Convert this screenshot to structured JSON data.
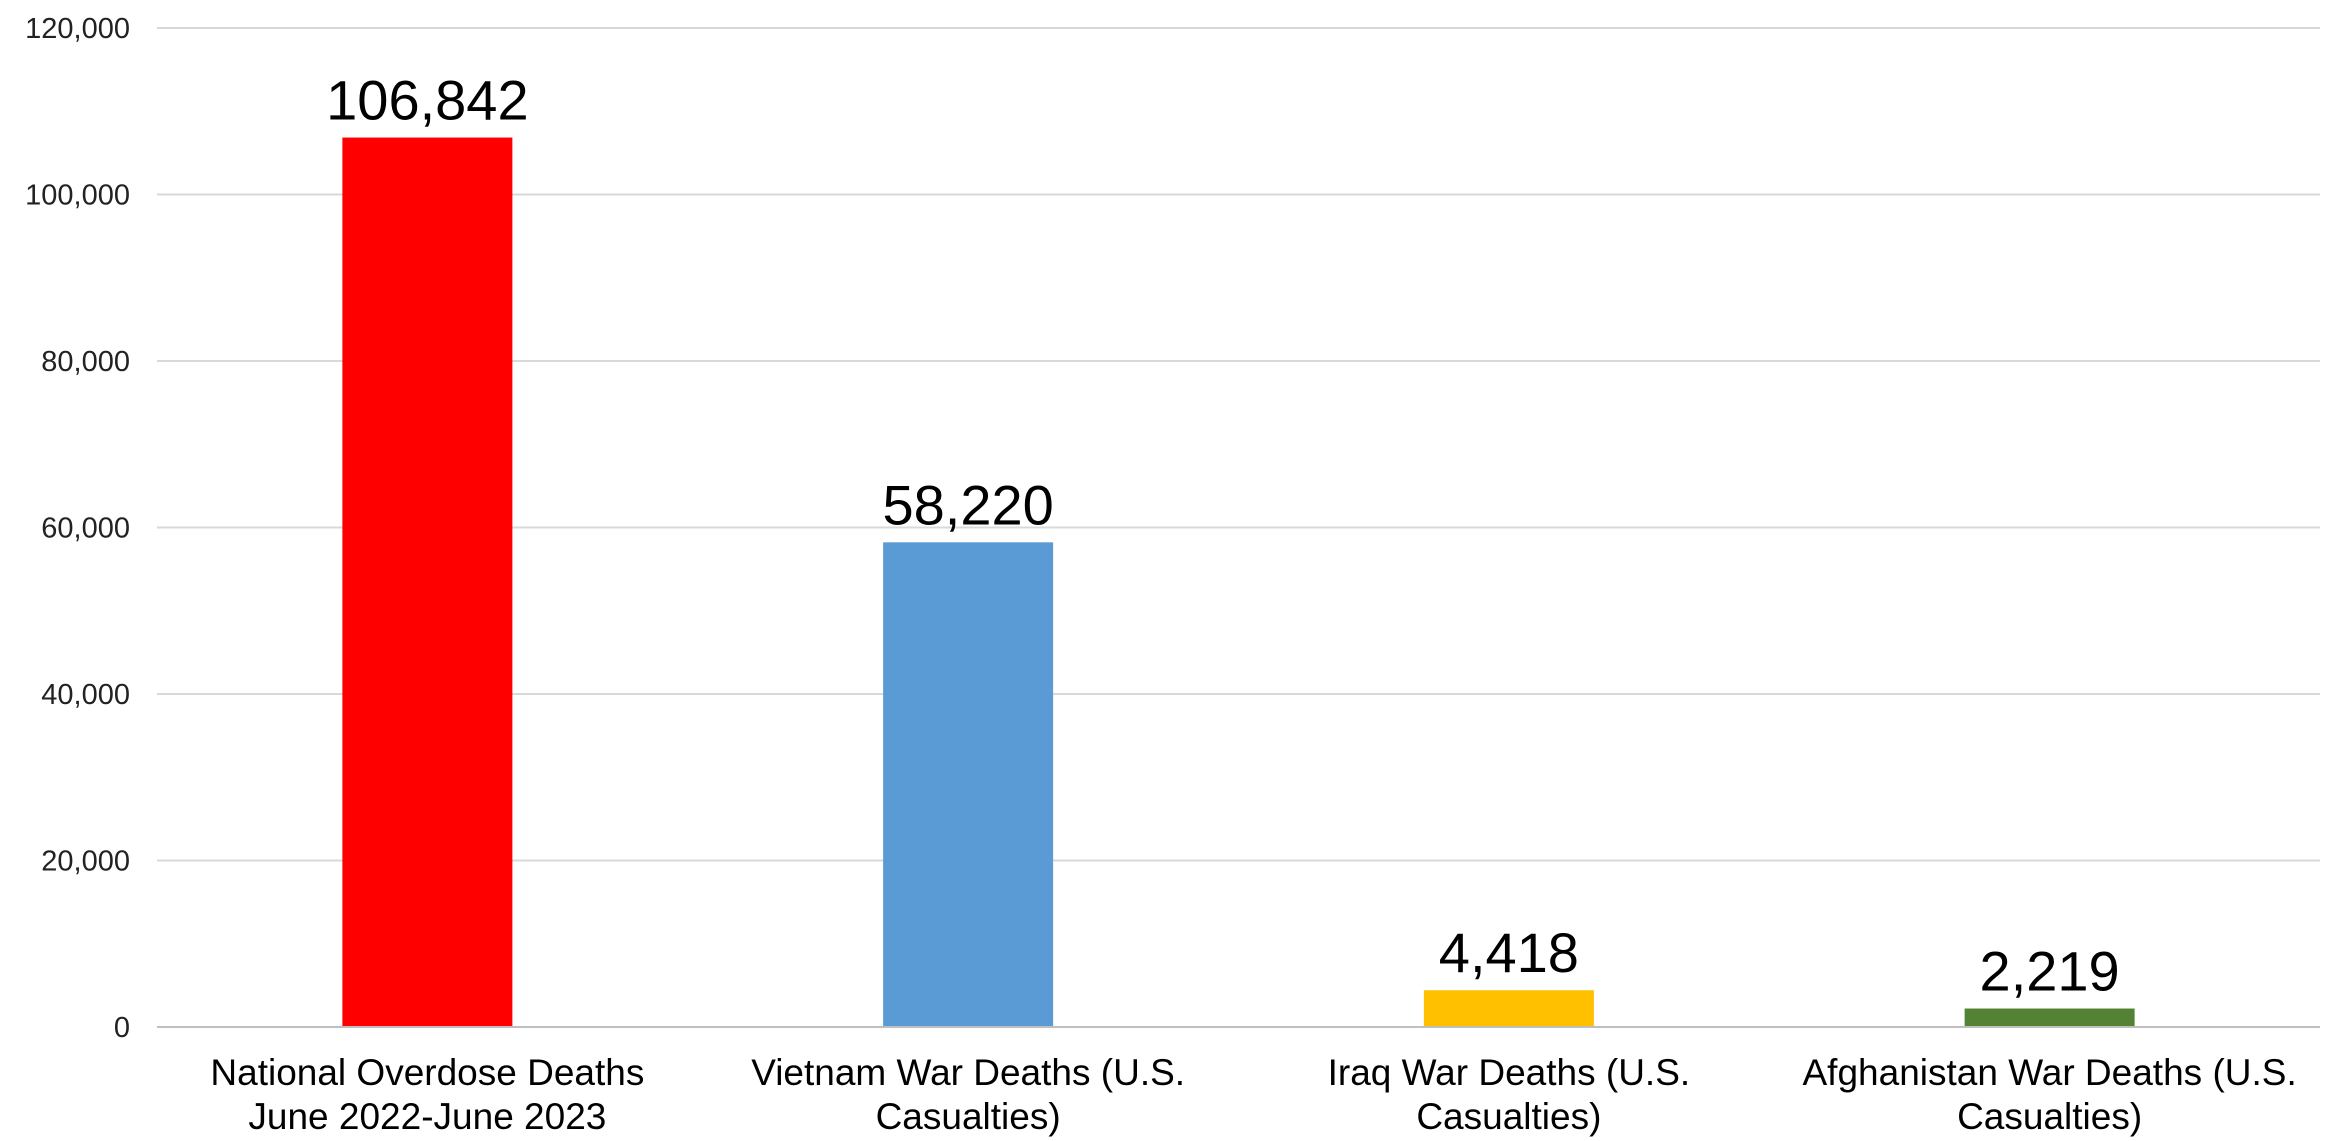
{
  "chart_data": {
    "type": "bar",
    "categories": [
      [
        "National Overdose Deaths",
        "June 2022-June 2023"
      ],
      [
        "Vietnam War Deaths (U.S.",
        "Casualties)"
      ],
      [
        "Iraq War Deaths (U.S.",
        "Casualties)"
      ],
      [
        "Afghanistan War Deaths (U.S.",
        "Casualties)"
      ]
    ],
    "values": [
      106842,
      58220,
      4418,
      2219
    ],
    "data_labels": [
      "106,842",
      "58,220",
      "4,418",
      "2,219"
    ],
    "colors": [
      "#ff0000",
      "#5b9bd5",
      "#ffc000",
      "#548235"
    ],
    "ylim": [
      0,
      120000
    ],
    "yticks": [
      0,
      20000,
      40000,
      60000,
      80000,
      100000,
      120000
    ],
    "ytick_labels": [
      "0",
      "20,000",
      "40,000",
      "60,000",
      "80,000",
      "100,000",
      "120,000"
    ],
    "grid": true,
    "legend": "none"
  }
}
